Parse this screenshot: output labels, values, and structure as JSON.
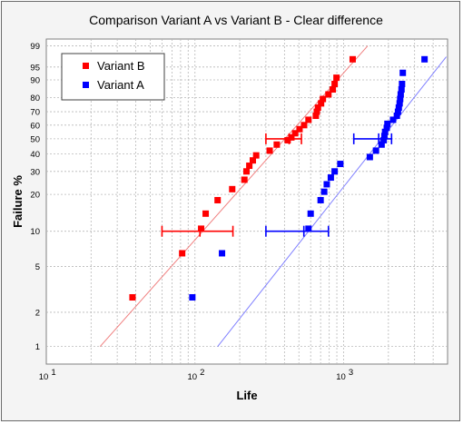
{
  "chart_data": {
    "type": "scatter",
    "title": "Comparison Variant A vs Variant B - Clear difference",
    "xlabel": "Life",
    "ylabel": "Failure %",
    "x_scale": "log",
    "y_scale": "weibull-probability",
    "xlim": [
      10,
      5000
    ],
    "ylim": [
      0.7,
      99.5
    ],
    "grid": true,
    "legend_position": "top-left",
    "y_ticks": [
      1,
      2,
      5,
      10,
      20,
      30,
      40,
      50,
      60,
      70,
      80,
      90,
      95,
      99
    ],
    "x_ticks": [
      {
        "value": 10,
        "base": "10",
        "exp": "1"
      },
      {
        "value": 100,
        "base": "10",
        "exp": "2"
      },
      {
        "value": 1000,
        "base": "10",
        "exp": "3"
      }
    ],
    "series": [
      {
        "name": "Variant B",
        "color": "#ff0000",
        "line_color": "#f08080",
        "points": [
          {
            "x": 38,
            "y": 2.7
          },
          {
            "x": 82,
            "y": 6.5
          },
          {
            "x": 110,
            "y": 10.5
          },
          {
            "x": 118,
            "y": 14
          },
          {
            "x": 142,
            "y": 18
          },
          {
            "x": 178,
            "y": 22
          },
          {
            "x": 215,
            "y": 26
          },
          {
            "x": 222,
            "y": 30
          },
          {
            "x": 232,
            "y": 33
          },
          {
            "x": 245,
            "y": 36
          },
          {
            "x": 258,
            "y": 39
          },
          {
            "x": 318,
            "y": 42
          },
          {
            "x": 355,
            "y": 46
          },
          {
            "x": 420,
            "y": 49
          },
          {
            "x": 445,
            "y": 51
          },
          {
            "x": 472,
            "y": 54
          },
          {
            "x": 505,
            "y": 57
          },
          {
            "x": 542,
            "y": 60
          },
          {
            "x": 580,
            "y": 64
          },
          {
            "x": 650,
            "y": 67
          },
          {
            "x": 660,
            "y": 70
          },
          {
            "x": 672,
            "y": 73
          },
          {
            "x": 705,
            "y": 76
          },
          {
            "x": 725,
            "y": 79
          },
          {
            "x": 790,
            "y": 82
          },
          {
            "x": 845,
            "y": 85
          },
          {
            "x": 870,
            "y": 88
          },
          {
            "x": 895,
            "y": 91
          },
          {
            "x": 1150,
            "y": 97
          }
        ],
        "fit_line": [
          {
            "x": 23,
            "y": 1
          },
          {
            "x": 1450,
            "y": 99
          }
        ],
        "error_bars": [
          {
            "center_x": 108,
            "low": 60,
            "high": 180,
            "y": 10
          },
          {
            "center_x": 430,
            "low": 300,
            "high": 520,
            "y": 50
          }
        ]
      },
      {
        "name": "Variant A",
        "color": "#0000ff",
        "line_color": "#8080ff",
        "points": [
          {
            "x": 96,
            "y": 2.7
          },
          {
            "x": 152,
            "y": 6.5
          },
          {
            "x": 580,
            "y": 10.5
          },
          {
            "x": 600,
            "y": 14
          },
          {
            "x": 700,
            "y": 18
          },
          {
            "x": 740,
            "y": 21
          },
          {
            "x": 770,
            "y": 24
          },
          {
            "x": 820,
            "y": 27
          },
          {
            "x": 870,
            "y": 30
          },
          {
            "x": 950,
            "y": 34
          },
          {
            "x": 1500,
            "y": 38
          },
          {
            "x": 1650,
            "y": 42
          },
          {
            "x": 1800,
            "y": 46
          },
          {
            "x": 1860,
            "y": 49
          },
          {
            "x": 1880,
            "y": 52
          },
          {
            "x": 1900,
            "y": 55
          },
          {
            "x": 1950,
            "y": 58
          },
          {
            "x": 1970,
            "y": 61
          },
          {
            "x": 2150,
            "y": 64
          },
          {
            "x": 2280,
            "y": 67
          },
          {
            "x": 2320,
            "y": 70
          },
          {
            "x": 2350,
            "y": 73
          },
          {
            "x": 2380,
            "y": 76
          },
          {
            "x": 2400,
            "y": 79
          },
          {
            "x": 2420,
            "y": 82
          },
          {
            "x": 2450,
            "y": 85
          },
          {
            "x": 2470,
            "y": 88
          },
          {
            "x": 2500,
            "y": 93
          },
          {
            "x": 3500,
            "y": 97
          }
        ],
        "fit_line": [
          {
            "x": 142,
            "y": 1
          },
          {
            "x": 4900,
            "y": 97.5
          }
        ],
        "error_bars": [
          {
            "center_x": 540,
            "low": 300,
            "high": 790,
            "y": 10
          },
          {
            "center_x": 1720,
            "low": 1170,
            "high": 2100,
            "y": 50
          }
        ]
      }
    ]
  }
}
